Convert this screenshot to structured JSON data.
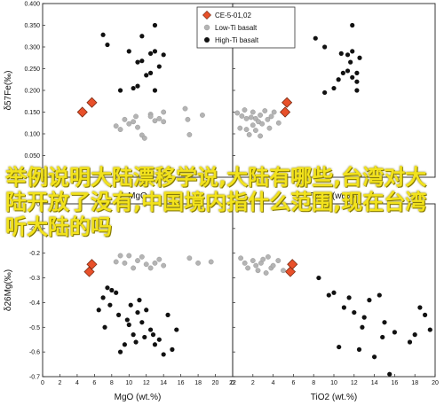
{
  "legend": {
    "entries": [
      {
        "label": "CE-5-01,02",
        "marker": "diamond",
        "color": "#e8502a"
      },
      {
        "label": "Low-Ti basalt",
        "marker": "circle",
        "color": "#b4b4b4"
      },
      {
        "label": "High-Ti basalt",
        "marker": "circle",
        "color": "#111111"
      }
    ]
  },
  "overlay_text": "举例说明大陆漂移学说,大陆有哪些,台湾对大陆开放了没有,中国境内指什么范围,现在台湾听大陆的吗",
  "colors": {
    "ce5": "#e8502a",
    "low_ti": "#b4b4b4",
    "high_ti": "#111111",
    "overlay": "#f2e21c"
  },
  "chart_data": [
    {
      "type": "scatter",
      "panel": "top-left",
      "xlabel": "MgO",
      "ylabel": "δ57Fe(‰)",
      "xlim": [
        0,
        22
      ],
      "ylim": [
        0,
        0.4
      ],
      "yticks": [
        "0",
        "0.050",
        "0.100",
        "0.150",
        "0.200",
        "0.250",
        "0.300",
        "0.350",
        "0.400"
      ],
      "series": [
        {
          "name": "CE-5-01,02",
          "points": [
            [
              4.6,
              0.15
            ],
            [
              5.7,
              0.172
            ]
          ]
        },
        {
          "name": "Low-Ti basalt",
          "points": [
            [
              8.5,
              0.118
            ],
            [
              9.0,
              0.11
            ],
            [
              9.5,
              0.133
            ],
            [
              10.0,
              0.123
            ],
            [
              10.5,
              0.128
            ],
            [
              10.8,
              0.14
            ],
            [
              11.0,
              0.115
            ],
            [
              11.5,
              0.097
            ],
            [
              11.8,
              0.09
            ],
            [
              12.5,
              0.145
            ],
            [
              12.5,
              0.14
            ],
            [
              13.0,
              0.13
            ],
            [
              13.5,
              0.135
            ],
            [
              14.0,
              0.128
            ],
            [
              14.0,
              0.15
            ],
            [
              16.5,
              0.158
            ],
            [
              16.8,
              0.133
            ],
            [
              17.0,
              0.098
            ],
            [
              18.5,
              0.143
            ]
          ]
        },
        {
          "name": "High-Ti basalt",
          "points": [
            [
              7.0,
              0.328
            ],
            [
              7.5,
              0.305
            ],
            [
              9.0,
              0.2
            ],
            [
              10.0,
              0.29
            ],
            [
              10.5,
              0.205
            ],
            [
              11.0,
              0.265
            ],
            [
              11.0,
              0.21
            ],
            [
              11.5,
              0.268
            ],
            [
              11.5,
              0.325
            ],
            [
              12.0,
              0.235
            ],
            [
              12.5,
              0.285
            ],
            [
              12.5,
              0.24
            ],
            [
              13.0,
              0.29
            ],
            [
              13.0,
              0.2
            ],
            [
              13.0,
              0.35
            ],
            [
              13.5,
              0.255
            ],
            [
              14.0,
              0.282
            ]
          ]
        }
      ]
    },
    {
      "type": "scatter",
      "panel": "top-right",
      "xlabel": "TiO2 (wt.%)",
      "ylabel": "",
      "xlim": [
        0,
        22
      ],
      "ylim": [
        0,
        0.4
      ],
      "series": [
        {
          "name": "CE-5-01,02",
          "points": [
            [
              5.7,
              0.15
            ],
            [
              5.9,
              0.172
            ]
          ]
        },
        {
          "name": "Low-Ti basalt",
          "points": [
            [
              0.5,
              0.148
            ],
            [
              0.8,
              0.113
            ],
            [
              1.0,
              0.141
            ],
            [
              1.3,
              0.155
            ],
            [
              1.5,
              0.135
            ],
            [
              1.5,
              0.11
            ],
            [
              1.8,
              0.098
            ],
            [
              2.0,
              0.138
            ],
            [
              2.2,
              0.15
            ],
            [
              2.2,
              0.12
            ],
            [
              2.5,
              0.108
            ],
            [
              2.5,
              0.135
            ],
            [
              2.8,
              0.128
            ],
            [
              3.0,
              0.095
            ],
            [
              3.0,
              0.143
            ],
            [
              3.2,
              0.123
            ],
            [
              3.5,
              0.153
            ],
            [
              3.8,
              0.133
            ],
            [
              4.0,
              0.113
            ],
            [
              4.2,
              0.14
            ],
            [
              4.5,
              0.15
            ],
            [
              5.0,
              0.125
            ]
          ]
        },
        {
          "name": "High-Ti basalt",
          "points": [
            [
              9.0,
              0.32
            ],
            [
              10.0,
              0.3
            ],
            [
              10.0,
              0.195
            ],
            [
              11.0,
              0.205
            ],
            [
              11.5,
              0.225
            ],
            [
              11.8,
              0.285
            ],
            [
              12.0,
              0.24
            ],
            [
              12.5,
              0.282
            ],
            [
              12.5,
              0.245
            ],
            [
              12.8,
              0.265
            ],
            [
              13.0,
              0.29
            ],
            [
              13.0,
              0.35
            ],
            [
              13.0,
              0.23
            ],
            [
              13.5,
              0.2
            ],
            [
              13.5,
              0.22
            ],
            [
              13.5,
              0.24
            ],
            [
              13.8,
              0.275
            ]
          ]
        }
      ]
    },
    {
      "type": "scatter",
      "panel": "bottom-left",
      "xlabel": "MgO (wt.%)",
      "ylabel": "δ26Mg(‰)",
      "xlim": [
        0,
        22
      ],
      "ylim": [
        -0.7,
        0
      ],
      "xticks": [
        "0",
        "2",
        "4",
        "6",
        "8",
        "10",
        "12",
        "14",
        "16",
        "18",
        "20",
        "22"
      ],
      "yticks": [
        "-0.7",
        "-0.6",
        "-0.5",
        "-0.4",
        "-0.3",
        "-0.2",
        "-0.1",
        "0"
      ],
      "series": [
        {
          "name": "CE-5-01,02",
          "points": [
            [
              5.4,
              -0.275
            ],
            [
              5.7,
              -0.245
            ]
          ]
        },
        {
          "name": "Low-Ti basalt",
          "points": [
            [
              8.5,
              -0.235
            ],
            [
              9.0,
              -0.21
            ],
            [
              9.5,
              -0.24
            ],
            [
              10.0,
              -0.21
            ],
            [
              10.5,
              -0.26
            ],
            [
              11.0,
              -0.23
            ],
            [
              11.5,
              -0.215
            ],
            [
              12.0,
              -0.245
            ],
            [
              12.5,
              -0.26
            ],
            [
              13.0,
              -0.24
            ],
            [
              13.5,
              -0.225
            ],
            [
              14.0,
              -0.25
            ],
            [
              17.0,
              -0.22
            ],
            [
              18.0,
              -0.24
            ],
            [
              19.5,
              -0.235
            ]
          ]
        },
        {
          "name": "High-Ti basalt",
          "points": [
            [
              6.5,
              -0.43
            ],
            [
              7.0,
              -0.38
            ],
            [
              7.2,
              -0.5
            ],
            [
              7.5,
              -0.34
            ],
            [
              7.8,
              -0.41
            ],
            [
              8.0,
              -0.35
            ],
            [
              8.5,
              -0.36
            ],
            [
              8.8,
              -0.45
            ],
            [
              9.0,
              -0.6
            ],
            [
              9.5,
              -0.57
            ],
            [
              9.8,
              -0.47
            ],
            [
              10.0,
              -0.49
            ],
            [
              10.2,
              -0.41
            ],
            [
              10.5,
              -0.53
            ],
            [
              10.8,
              -0.56
            ],
            [
              11.0,
              -0.44
            ],
            [
              11.2,
              -0.39
            ],
            [
              11.5,
              -0.48
            ],
            [
              11.8,
              -0.54
            ],
            [
              12.0,
              -0.43
            ],
            [
              12.5,
              -0.51
            ],
            [
              12.8,
              -0.53
            ],
            [
              13.0,
              -0.57
            ],
            [
              13.5,
              -0.55
            ],
            [
              14.0,
              -0.61
            ],
            [
              14.5,
              -0.45
            ],
            [
              15.0,
              -0.59
            ],
            [
              15.5,
              -0.51
            ]
          ]
        }
      ]
    },
    {
      "type": "scatter",
      "panel": "bottom-right",
      "xlabel": "TiO2 (wt.%)",
      "ylabel": "",
      "xlim": [
        0,
        20
      ],
      "ylim": [
        -0.7,
        0
      ],
      "xticks": [
        "0",
        "2",
        "4",
        "6",
        "8",
        "10",
        "12",
        "14",
        "16",
        "18",
        "20"
      ],
      "series": [
        {
          "name": "CE-5-01,02",
          "points": [
            [
              5.7,
              -0.275
            ],
            [
              5.9,
              -0.245
            ]
          ]
        },
        {
          "name": "Low-Ti basalt",
          "points": [
            [
              0.8,
              -0.22
            ],
            [
              1.2,
              -0.24
            ],
            [
              1.5,
              -0.26
            ],
            [
              2.0,
              -0.23
            ],
            [
              2.3,
              -0.25
            ],
            [
              2.5,
              -0.27
            ],
            [
              2.8,
              -0.24
            ],
            [
              3.0,
              -0.225
            ],
            [
              3.3,
              -0.28
            ],
            [
              3.5,
              -0.215
            ],
            [
              3.8,
              -0.26
            ],
            [
              4.0,
              -0.25
            ],
            [
              4.5,
              -0.23
            ],
            [
              5.0,
              -0.27
            ]
          ]
        },
        {
          "name": "High-Ti basalt",
          "points": [
            [
              8.5,
              -0.3
            ],
            [
              9.5,
              -0.37
            ],
            [
              10.0,
              -0.36
            ],
            [
              10.5,
              -0.58
            ],
            [
              11.0,
              -0.42
            ],
            [
              11.5,
              -0.38
            ],
            [
              12.0,
              -0.44
            ],
            [
              12.5,
              -0.59
            ],
            [
              12.8,
              -0.5
            ],
            [
              13.0,
              -0.46
            ],
            [
              13.5,
              -0.39
            ],
            [
              14.0,
              -0.62
            ],
            [
              14.5,
              -0.37
            ],
            [
              14.8,
              -0.54
            ],
            [
              15.0,
              -0.48
            ],
            [
              15.5,
              -0.69
            ],
            [
              16.0,
              -0.52
            ],
            [
              17.5,
              -0.56
            ],
            [
              18.0,
              -0.53
            ],
            [
              18.5,
              -0.42
            ],
            [
              19.0,
              -0.45
            ],
            [
              19.5,
              -0.51
            ]
          ]
        }
      ]
    }
  ]
}
